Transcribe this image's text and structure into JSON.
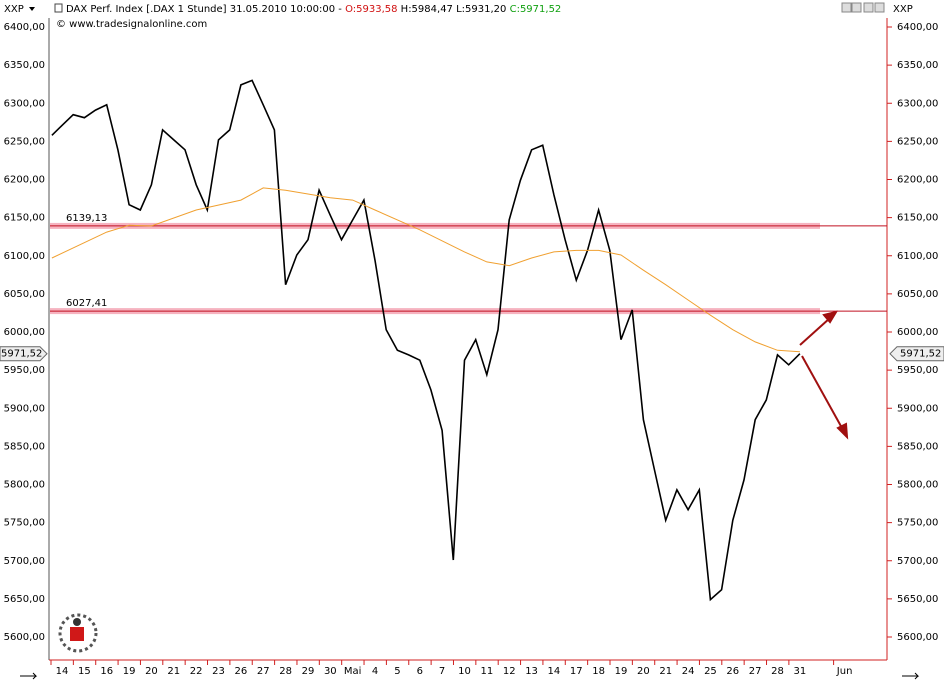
{
  "chart_data": {
    "type": "line",
    "symbol": "XXP",
    "header": {
      "instrument": "DAX Perf. Index [.DAX  1 Stunde] 31.05.2010 10:00:00 -",
      "open": "O:5933,58",
      "high": "H:5984,47",
      "low": "L:5931,20",
      "close": "C:5971,52"
    },
    "subtitle": "© www.tradesignalonline.com",
    "categories": [
      "14",
      "15",
      "16",
      "19",
      "20",
      "21",
      "22",
      "23",
      "26",
      "27",
      "28",
      "29",
      "30",
      "Mai",
      "4",
      "5",
      "6",
      "7",
      "10",
      "11",
      "12",
      "13",
      "14",
      "17",
      "18",
      "19",
      "20",
      "21",
      "24",
      "25",
      "26",
      "27",
      "28",
      "31",
      null,
      "Jun"
    ],
    "series": [
      {
        "color": "#000000",
        "x": [
          -0.45,
          0,
          0.5,
          1,
          1.5,
          2,
          2.5,
          3,
          3.5,
          4,
          4.5,
          5,
          5.5,
          6,
          6.5,
          7,
          7.5,
          8,
          8.5,
          9,
          9.5,
          10,
          10.5,
          11,
          11.5,
          12,
          12.5,
          13,
          13.5,
          14,
          14.5,
          15,
          15.5,
          16,
          16.5,
          17,
          17.5,
          18,
          18.5,
          19,
          19.5,
          20,
          20.5,
          21,
          21.5,
          22,
          22.5,
          23,
          23.5,
          24,
          24.5,
          25,
          25.5,
          26,
          26.5,
          27,
          27.5,
          28,
          28.5,
          29,
          29.5,
          30,
          30.5,
          31,
          31.5,
          32,
          32.5,
          33
        ],
        "values": [
          6258,
          6271,
          6285,
          6281,
          6291,
          6298,
          6239,
          6167,
          6160,
          6193,
          6265,
          6252,
          6239,
          6193,
          6160,
          6252,
          6265,
          6324,
          6330,
          6298,
          6265,
          6062,
          6101,
          6121,
          6186,
          6153,
          6121,
          6147,
          6173,
          6094,
          6003,
          5976,
          5970,
          5963,
          5924,
          5871,
          5701,
          5963,
          5990,
          5944,
          6003,
          6147,
          6199,
          6239,
          6245,
          6180,
          6121,
          6068,
          6107,
          6160,
          6107,
          5990,
          6029,
          5885,
          5819,
          5753,
          5793,
          5767,
          5793,
          5649,
          5662,
          5753,
          5806,
          5885,
          5911,
          5970,
          5957,
          5971.52
        ]
      },
      {
        "color": "#f0a030",
        "x": [
          -0.45,
          2,
          3,
          4,
          6,
          8,
          9,
          10,
          12,
          13,
          14,
          16,
          18,
          19,
          20,
          21,
          22,
          23,
          24,
          25,
          26,
          27,
          28,
          29,
          30,
          31,
          32,
          33
        ],
        "values": [
          6097,
          6131,
          6140,
          6139,
          6160,
          6173,
          6189,
          6186,
          6176,
          6173,
          6160,
          6134,
          6105,
          6092,
          6087,
          6097,
          6105,
          6107,
          6107,
          6101,
          6081,
          6062,
          6042,
          6022,
          6003,
          5987,
          5976,
          5974
        ]
      }
    ],
    "levels": [
      {
        "value": 6139.13,
        "label": "6139,13"
      },
      {
        "value": 6027.41,
        "label": "6027,41"
      }
    ],
    "last": {
      "value": 5971.52,
      "label": "5971,52"
    },
    "ylim": [
      5600,
      6400
    ],
    "yticks": [
      {
        "value": 5600,
        "label": "5600,00"
      },
      {
        "value": 5650,
        "label": "5650,00"
      },
      {
        "value": 5700,
        "label": "5700,00"
      },
      {
        "value": 5750,
        "label": "5750,00"
      },
      {
        "value": 5800,
        "label": "5800,00"
      },
      {
        "value": 5850,
        "label": "5850,00"
      },
      {
        "value": 5900,
        "label": "5900,00"
      },
      {
        "value": 5950,
        "label": "5950,00"
      },
      {
        "value": 6000,
        "label": "6000,00"
      },
      {
        "value": 6050,
        "label": "6050,00"
      },
      {
        "value": 6100,
        "label": "6100,00"
      },
      {
        "value": 6150,
        "label": "6150,00"
      },
      {
        "value": 6200,
        "label": "6200,00"
      },
      {
        "value": 6250,
        "label": "6250,00"
      },
      {
        "value": 6300,
        "label": "6300,00"
      },
      {
        "value": 6350,
        "label": "6350,00"
      },
      {
        "value": 6400,
        "label": "6400,00"
      }
    ],
    "grid": false
  }
}
